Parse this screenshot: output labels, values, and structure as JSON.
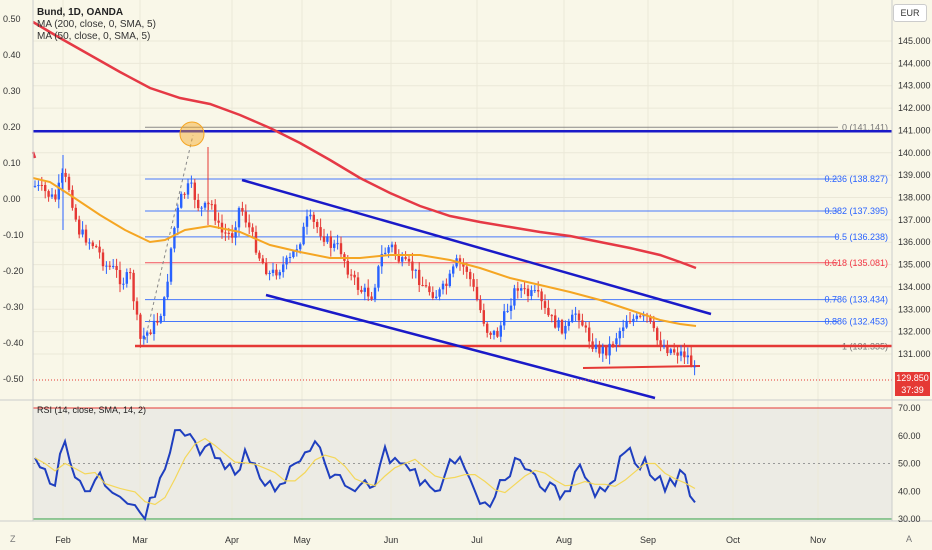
{
  "header": {
    "symbol_line": "Bund, 1D, OANDA",
    "ma200_line": "MA (200, close, 0, SMA, 5)",
    "ma50_line": "MA (50, close, 0, SMA, 5)",
    "currency": "EUR"
  },
  "left_axis_ticks": [
    "0.50",
    "0.40",
    "0.30",
    "0.20",
    "0.10",
    "0.00",
    "-0.10",
    "-0.20",
    "-0.30",
    "-0.40",
    "-0.50"
  ],
  "left_axis_values": [
    0.5,
    0.4,
    0.3,
    0.2,
    0.1,
    0.0,
    -0.1,
    -0.2,
    -0.3,
    -0.4,
    -0.5
  ],
  "right_axis_ticks": [
    "145.000",
    "144.000",
    "143.000",
    "142.000",
    "141.000",
    "140.000",
    "139.000",
    "138.000",
    "137.000",
    "136.000",
    "135.000",
    "134.000",
    "133.000",
    "132.000",
    "131.000"
  ],
  "right_axis_values": [
    145,
    144,
    143,
    142,
    141,
    140,
    139,
    138,
    137,
    136,
    135,
    134,
    133,
    132,
    131
  ],
  "price_tag": {
    "price": "129.850",
    "countdown": "37:39"
  },
  "fib_levels": [
    {
      "label": "0 (141.141)",
      "value": 141.141,
      "color": "#787878"
    },
    {
      "label": "0.236 (138.827)",
      "value": 138.827,
      "color": "#2962ff"
    },
    {
      "label": "0.382 (137.395)",
      "value": 137.395,
      "color": "#2962ff"
    },
    {
      "label": "0.5 (136.238)",
      "value": 136.238,
      "color": "#2962ff"
    },
    {
      "label": "0.618 (135.081)",
      "value": 135.081,
      "color": "#f23645"
    },
    {
      "label": "0.786 (133.434)",
      "value": 133.434,
      "color": "#2962ff"
    },
    {
      "label": "0.886 (132.453)",
      "value": 132.453,
      "color": "#2962ff"
    },
    {
      "label": "1 (131.335)",
      "value": 131.335,
      "color": "#787878"
    }
  ],
  "rsi": {
    "label": "RSI (14, close, SMA, 14, 2)",
    "ticks": [
      "70.00",
      "60.00",
      "50.00",
      "40.00",
      "30.00"
    ],
    "tick_values": [
      70,
      60,
      50,
      40,
      30
    ]
  },
  "x_axis_ticks": [
    "Feb",
    "Mar",
    "Apr",
    "May",
    "Jun",
    "Jul",
    "Aug",
    "Sep",
    "Oct",
    "Nov"
  ],
  "corner_buttons": {
    "left": "Z",
    "right": "A"
  },
  "colors": {
    "background": "#f9f7e8",
    "up_candle": "#2962ff",
    "down_candle": "#e53935",
    "ma200": "#e53945",
    "ma50": "#f5a623",
    "channel": "#1a1ac8",
    "support": "#e53935",
    "rsi_line": "#1f3fbf",
    "rsi_ma": "#f5d54a"
  },
  "chart_data": [
    {
      "type": "candlestick",
      "title": "Bund, 1D, OANDA",
      "y_range": [
        129.5,
        145.5
      ],
      "x_range": [
        "Jan",
        "Nov"
      ],
      "series": [
        {
          "name": "MA (200, close, 0, SMA, 5)"
        },
        {
          "name": "MA (50, close, 0, SMA, 5)"
        }
      ],
      "last_price": 129.85
    },
    {
      "type": "line",
      "title": "RSI (14, close, SMA, 14, 2)",
      "ylim": [
        30,
        70
      ],
      "last_value": 36
    }
  ]
}
